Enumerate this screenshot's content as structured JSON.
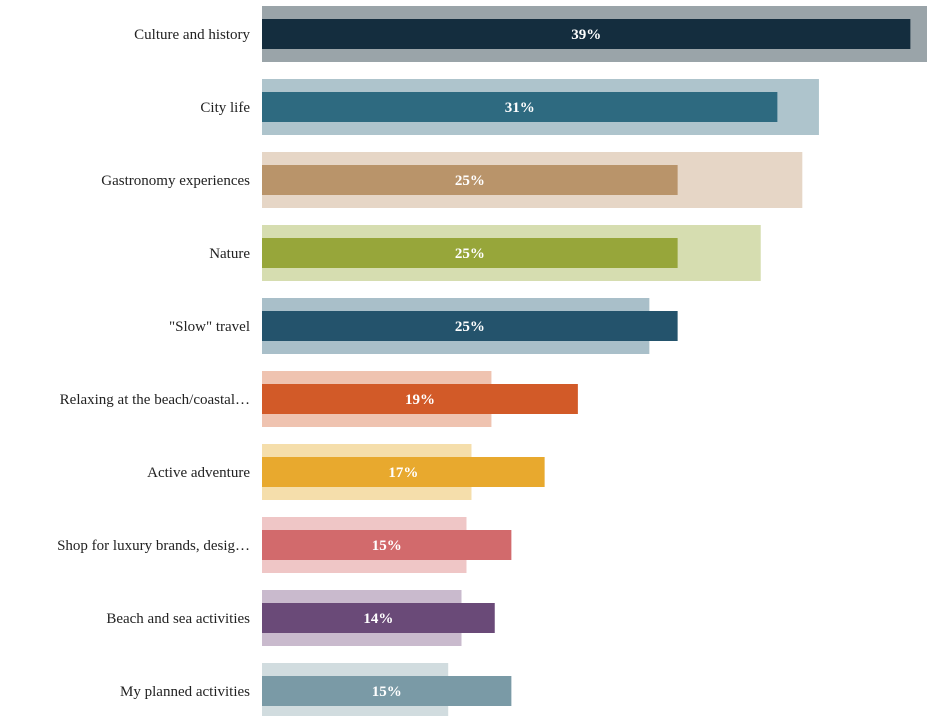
{
  "chart_data": {
    "type": "bar",
    "orientation": "horizontal",
    "categories": [
      "Culture and history",
      "City life",
      "Gastronomy experiences",
      "Nature",
      "\"Slow\" travel",
      "Relaxing at the beach/coastal…",
      "Active adventure",
      "Shop for luxury brands, desig…",
      "Beach and sea activities",
      "My planned activities"
    ],
    "series": [
      {
        "values": [
          40,
          33.5,
          32.5,
          30,
          23.3,
          13.8,
          12.6,
          12.3,
          12,
          11.2
        ],
        "style": "wide-background"
      },
      {
        "values": [
          39,
          31,
          25,
          25,
          25,
          19,
          17,
          15,
          14,
          15
        ],
        "style": "narrow-foreground",
        "data_labels": [
          "39%",
          "31%",
          "25%",
          "25%",
          "25%",
          "19%",
          "17%",
          "15%",
          "14%",
          "15%"
        ]
      }
    ],
    "colors": {
      "foreground": [
        "#142d3e",
        "#2e6a80",
        "#b9946a",
        "#97a63a",
        "#24536c",
        "#d25a28",
        "#e8a92e",
        "#d26a6c",
        "#6a4a78",
        "#7a9aa6"
      ],
      "background": [
        "#9aa4a9",
        "#aec4cc",
        "#e6d6c6",
        "#d6ddb0",
        "#a9bfc9",
        "#efc3b0",
        "#f5deab",
        "#efc6c6",
        "#c9bacd",
        "#d1dcdf"
      ]
    },
    "xlim": [
      0,
      40
    ],
    "grid": false,
    "legend": "none"
  }
}
